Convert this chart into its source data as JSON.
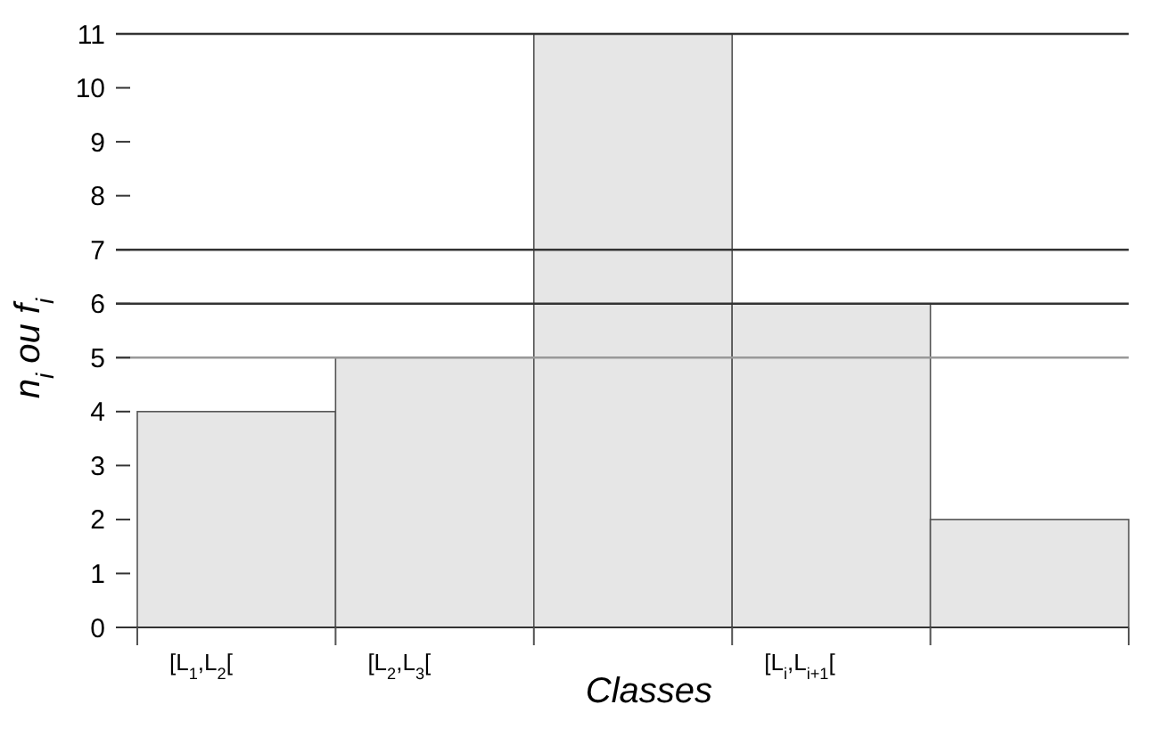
{
  "chart_data": {
    "type": "bar",
    "xlabel": "Classes",
    "ylabel": "n$_{i}$ ou f$_{i}$",
    "categories": [
      "[L$_{1}$,L$_{2}$[",
      "[L$_{2}$,L$_{3}$[",
      null,
      "[L$_{i}$,L$_{i+1}$[",
      null
    ],
    "values": [
      4,
      5,
      11,
      6,
      2
    ],
    "color": "#e6e6e6",
    "ylim": [
      0,
      11
    ],
    "yticks": [
      0,
      1,
      2,
      3,
      4,
      5,
      6,
      7,
      8,
      9,
      10,
      11
    ],
    "ref_lines": [
      {
        "axis": "y",
        "value": 5,
        "color": "#999999"
      },
      {
        "axis": "y",
        "value": 6,
        "color": "#333333"
      },
      {
        "axis": "y",
        "value": 7,
        "color": "#333333"
      }
    ],
    "grid": false
  }
}
